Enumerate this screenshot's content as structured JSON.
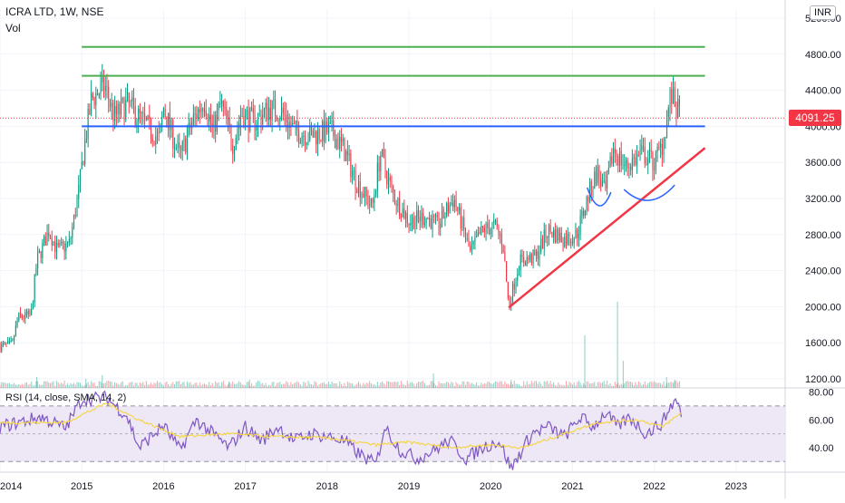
{
  "header": {
    "symbol": "ICRA LTD, 1W, NSE",
    "vol_label": "Vol",
    "currency": "INR",
    "rsi_label": "RSI (14, close, SMA, 14, 2)"
  },
  "colors": {
    "up": "#089981",
    "down": "#f23645",
    "rsi_line": "#7e57c2",
    "rsi_ma": "#f5d547",
    "rsi_band": "#ede7f6",
    "resistance": "#4caf50",
    "support": "#2962ff",
    "trendline": "#f23645",
    "cup_arc": "#2962ff",
    "last_price": "#f23645"
  },
  "chart_data": [
    {
      "type": "candlestick",
      "title": "ICRA LTD, 1W, NSE",
      "ylim": [
        1100,
        5300
      ],
      "y_ticks": [
        1200,
        1600,
        2000,
        2400,
        2800,
        3200,
        3600,
        4000,
        4400,
        4800,
        5200
      ],
      "y_tick_labels": [
        "1200.00",
        "1600.00",
        "2000.00",
        "2400.00",
        "2800.00",
        "3200.00",
        "3600.00",
        "4000.00",
        "4400.00",
        "4800.00",
        "5200.00"
      ],
      "x_range": [
        2014.0,
        2023.6
      ],
      "x_ticks": [
        2014,
        2015,
        2016,
        2017,
        2018,
        2019,
        2020,
        2021,
        2022,
        2023
      ],
      "x_tick_labels": [
        "2014",
        "2015",
        "2016",
        "2017",
        "2018",
        "2019",
        "2020",
        "2021",
        "2022",
        "2023"
      ],
      "last_price": "4091.25",
      "price_path": [
        [
          2014.0,
          1560
        ],
        [
          2014.15,
          1580
        ],
        [
          2014.22,
          1880
        ],
        [
          2014.38,
          1900
        ],
        [
          2014.45,
          2500
        ],
        [
          2014.6,
          2850
        ],
        [
          2014.7,
          2620
        ],
        [
          2014.85,
          2700
        ],
        [
          2014.95,
          3200
        ],
        [
          2015.05,
          3900
        ],
        [
          2015.12,
          4300
        ],
        [
          2015.28,
          4450
        ],
        [
          2015.4,
          4100
        ],
        [
          2015.55,
          4250
        ],
        [
          2015.75,
          4050
        ],
        [
          2015.95,
          3850
        ],
        [
          2016.0,
          4200
        ],
        [
          2016.2,
          3650
        ],
        [
          2016.35,
          4050
        ],
        [
          2016.5,
          4300
        ],
        [
          2016.6,
          3950
        ],
        [
          2016.7,
          4250
        ],
        [
          2016.85,
          3800
        ],
        [
          2016.95,
          4150
        ],
        [
          2017.1,
          4050
        ],
        [
          2017.3,
          4200
        ],
        [
          2017.45,
          4150
        ],
        [
          2017.6,
          3950
        ],
        [
          2017.8,
          3900
        ],
        [
          2018.05,
          3950
        ],
        [
          2018.2,
          3750
        ],
        [
          2018.35,
          3400
        ],
        [
          2018.55,
          3100
        ],
        [
          2018.65,
          3700
        ],
        [
          2018.8,
          3250
        ],
        [
          2019.0,
          2950
        ],
        [
          2019.2,
          3000
        ],
        [
          2019.35,
          2900
        ],
        [
          2019.45,
          3050
        ],
        [
          2019.55,
          3200
        ],
        [
          2019.75,
          2600
        ],
        [
          2019.9,
          2850
        ],
        [
          2020.05,
          2900
        ],
        [
          2020.15,
          2700
        ],
        [
          2020.22,
          2000
        ],
        [
          2020.35,
          2500
        ],
        [
          2020.55,
          2550
        ],
        [
          2020.7,
          2850
        ],
        [
          2020.9,
          2750
        ],
        [
          2021.05,
          2800
        ],
        [
          2021.2,
          3250
        ],
        [
          2021.3,
          3500
        ],
        [
          2021.4,
          3250
        ],
        [
          2021.5,
          3750
        ],
        [
          2021.65,
          3550
        ],
        [
          2021.85,
          3700
        ],
        [
          2022.0,
          3600
        ],
        [
          2022.1,
          3800
        ],
        [
          2022.2,
          4350
        ],
        [
          2022.27,
          4200
        ],
        [
          2022.32,
          4091.25
        ]
      ],
      "volume_spikes": [
        [
          2014.45,
          12
        ],
        [
          2015.05,
          10
        ],
        [
          2015.25,
          14
        ],
        [
          2016.8,
          7
        ],
        [
          2017.05,
          9
        ],
        [
          2019.3,
          16
        ],
        [
          2020.25,
          9
        ],
        [
          2021.15,
          58
        ],
        [
          2021.55,
          95
        ],
        [
          2021.62,
          30
        ],
        [
          2022.15,
          12
        ],
        [
          2022.25,
          9
        ]
      ],
      "resistance_levels": [
        4880,
        4560
      ],
      "support_level": 4000,
      "trendline": {
        "from": [
          2020.22,
          1990
        ],
        "to": [
          2022.62,
          3760
        ]
      },
      "cup_arcs": [
        {
          "from": [
            2021.18,
            3320
          ],
          "to": [
            2021.47,
            3270
          ],
          "depth": 3120
        },
        {
          "from": [
            2021.63,
            3300
          ],
          "to": [
            2022.25,
            3350
          ],
          "depth": 3180
        }
      ]
    },
    {
      "type": "line",
      "title": "RSI (14, close, SMA, 14, 2)",
      "ylim": [
        23,
        83
      ],
      "y_ticks": [
        40,
        60,
        80
      ],
      "y_tick_labels": [
        "40.00",
        "60.00",
        "80.00"
      ],
      "overbought": 70,
      "middle": 50,
      "oversold": 30,
      "series": [
        {
          "values": [
            [
              2014.0,
              55
            ],
            [
              2014.5,
              62
            ],
            [
              2014.8,
              54
            ],
            [
              2015.0,
              75
            ],
            [
              2015.3,
              76
            ],
            [
              2015.55,
              63
            ],
            [
              2015.7,
              40
            ],
            [
              2016.0,
              56
            ],
            [
              2016.2,
              38
            ],
            [
              2016.4,
              60
            ],
            [
              2016.6,
              50
            ],
            [
              2016.8,
              40
            ],
            [
              2017.0,
              55
            ],
            [
              2017.2,
              45
            ],
            [
              2017.4,
              55
            ],
            [
              2017.6,
              45
            ],
            [
              2017.8,
              50
            ],
            [
              2018.0,
              48
            ],
            [
              2018.2,
              45
            ],
            [
              2018.4,
              35
            ],
            [
              2018.6,
              28
            ],
            [
              2018.7,
              55
            ],
            [
              2018.9,
              38
            ],
            [
              2019.1,
              32
            ],
            [
              2019.3,
              38
            ],
            [
              2019.5,
              45
            ],
            [
              2019.7,
              32
            ],
            [
              2019.9,
              40
            ],
            [
              2020.1,
              45
            ],
            [
              2020.25,
              25
            ],
            [
              2020.5,
              50
            ],
            [
              2020.7,
              55
            ],
            [
              2020.9,
              48
            ],
            [
              2021.1,
              62
            ],
            [
              2021.25,
              55
            ],
            [
              2021.4,
              65
            ],
            [
              2021.55,
              55
            ],
            [
              2021.7,
              62
            ],
            [
              2021.9,
              50
            ],
            [
              2022.1,
              58
            ],
            [
              2022.2,
              70
            ],
            [
              2022.28,
              75
            ],
            [
              2022.33,
              62
            ]
          ]
        },
        {
          "values": [
            [
              2014.0,
              58
            ],
            [
              2014.8,
              58
            ],
            [
              2015.3,
              72
            ],
            [
              2015.7,
              60
            ],
            [
              2016.2,
              48
            ],
            [
              2016.8,
              50
            ],
            [
              2017.3,
              48
            ],
            [
              2018.0,
              47
            ],
            [
              2018.6,
              42
            ],
            [
              2019.0,
              44
            ],
            [
              2019.5,
              40
            ],
            [
              2020.0,
              42
            ],
            [
              2020.4,
              40
            ],
            [
              2020.9,
              50
            ],
            [
              2021.3,
              58
            ],
            [
              2021.8,
              60
            ],
            [
              2022.1,
              55
            ],
            [
              2022.33,
              65
            ]
          ]
        }
      ]
    }
  ]
}
